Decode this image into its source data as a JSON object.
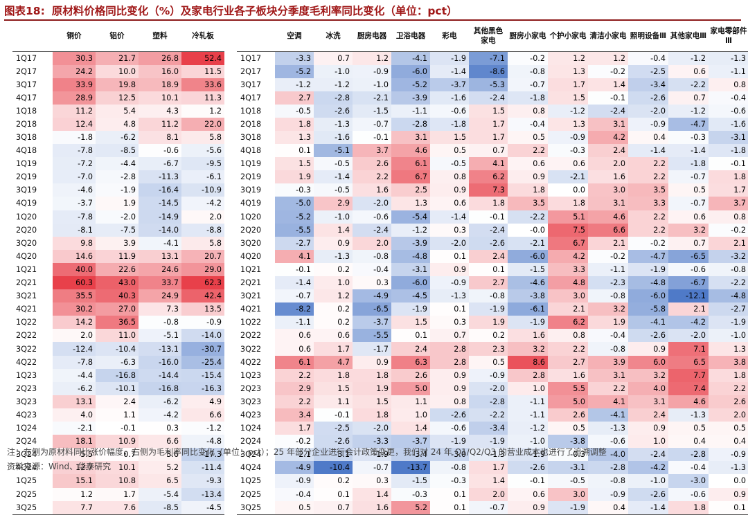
{
  "title": {
    "prefix": "图表18:",
    "text": "原材料价格同比变化（%）及家电行业各子板块分季度毛利率同比变化（单位：pct）"
  },
  "left_table": {
    "headers": [
      "",
      "铜价",
      "铝价",
      "塑料",
      "冷轧板"
    ],
    "rows": [
      {
        "q": "1Q17",
        "v": [
          30.3,
          21.7,
          26.8,
          52.4
        ]
      },
      {
        "q": "2Q17",
        "v": [
          24.2,
          10.0,
          16.0,
          11.5
        ]
      },
      {
        "q": "3Q17",
        "v": [
          33.9,
          19.8,
          18.9,
          33.6
        ]
      },
      {
        "q": "4Q17",
        "v": [
          28.9,
          12.5,
          10.1,
          11.3
        ]
      },
      {
        "q": "1Q18",
        "v": [
          11.2,
          5.4,
          4.3,
          1.2
        ]
      },
      {
        "q": "2Q18",
        "v": [
          12.4,
          4.8,
          11.2,
          22.0
        ]
      },
      {
        "q": "3Q18",
        "v": [
          -1.8,
          -6.2,
          8.1,
          5.8
        ]
      },
      {
        "q": "4Q18",
        "v": [
          -7.8,
          -8.5,
          -0.6,
          -5.6
        ]
      },
      {
        "q": "1Q19",
        "v": [
          -7.2,
          -4.4,
          -6.7,
          -9.5
        ]
      },
      {
        "q": "2Q19",
        "v": [
          -7.0,
          -2.8,
          -11.3,
          -6.1
        ]
      },
      {
        "q": "3Q19",
        "v": [
          -4.6,
          -1.9,
          -16.4,
          -10.9
        ]
      },
      {
        "q": "4Q19",
        "v": [
          -3.7,
          1.9,
          -14.5,
          -4.2
        ]
      },
      {
        "q": "1Q20",
        "v": [
          -7.8,
          -2.0,
          -14.9,
          2.0
        ]
      },
      {
        "q": "2Q20",
        "v": [
          -8.1,
          -7.5,
          -14.0,
          -8.8
        ]
      },
      {
        "q": "3Q20",
        "v": [
          9.8,
          3.9,
          -4.1,
          5.8
        ]
      },
      {
        "q": "4Q20",
        "v": [
          14.6,
          11.9,
          13.1,
          20.7
        ]
      },
      {
        "q": "1Q21",
        "v": [
          40.0,
          22.6,
          24.6,
          29.0
        ]
      },
      {
        "q": "2Q21",
        "v": [
          60.3,
          43.0,
          33.7,
          62.3
        ]
      },
      {
        "q": "3Q21",
        "v": [
          35.5,
          40.3,
          24.9,
          42.4
        ]
      },
      {
        "q": "4Q21",
        "v": [
          30.2,
          27.0,
          7.3,
          13.5
        ]
      },
      {
        "q": "1Q22",
        "v": [
          14.2,
          36.5,
          -0.8,
          -0.9
        ]
      },
      {
        "q": "2Q22",
        "v": [
          2.0,
          11.0,
          -5.1,
          -14.0
        ]
      },
      {
        "q": "3Q22",
        "v": [
          -12.4,
          -10.4,
          -13.1,
          -30.7
        ]
      },
      {
        "q": "4Q22",
        "v": [
          -7.8,
          -6.3,
          -16.0,
          -25.4
        ]
      },
      {
        "q": "1Q23",
        "v": [
          -4.4,
          -16.8,
          -14.4,
          -15.4
        ]
      },
      {
        "q": "2Q23",
        "v": [
          -6.2,
          -10.1,
          -16.8,
          -16.3
        ]
      },
      {
        "q": "3Q23",
        "v": [
          13.1,
          2.4,
          -6.2,
          4.9
        ]
      },
      {
        "q": "4Q23",
        "v": [
          4.0,
          1.1,
          -4.2,
          6.6
        ]
      },
      {
        "q": "1Q24",
        "v": [
          -2.1,
          -0.1,
          0.3,
          -1.2
        ]
      },
      {
        "q": "2Q24",
        "v": [
          18.1,
          10.9,
          6.6,
          -4.8
        ]
      },
      {
        "q": "3Q24",
        "v": [
          5.5,
          0.7,
          3.6,
          -17.3
        ]
      },
      {
        "q": "4Q24",
        "v": [
          12.7,
          10.1,
          5.2,
          -11.4
        ]
      },
      {
        "q": "1Q25",
        "v": [
          15.1,
          10.8,
          6.5,
          -9.3
        ]
      },
      {
        "q": "2Q25",
        "v": [
          1.2,
          1.7,
          -5.4,
          -13.4
        ]
      },
      {
        "q": "3Q25",
        "v": [
          7.7,
          7.6,
          -8.5,
          -4.5
        ]
      }
    ]
  },
  "right_table": {
    "headers": [
      "",
      "空调",
      "冰洗",
      "厨房电器",
      "卫浴电器",
      "彩电",
      "其他黑色家电",
      "厨房小家电",
      "个护小家电",
      "清洁小家电",
      "照明设备Ⅲ",
      "其他家电Ⅲ",
      "家电零部件Ⅲ"
    ],
    "rows": [
      {
        "q": "1Q17",
        "v": [
          -3.3,
          0.7,
          1.2,
          -4.1,
          -1.9,
          -7.1,
          -0.2,
          1.2,
          1.2,
          -0.4,
          -1.2,
          -1.3
        ]
      },
      {
        "q": "2Q17",
        "v": [
          -5.2,
          -1.0,
          -0.9,
          -6.0,
          -1.4,
          -8.6,
          -0.8,
          1.3,
          -0.2,
          -2.5,
          0.6,
          -1.1
        ]
      },
      {
        "q": "3Q17",
        "v": [
          -1.2,
          -1.2,
          -1.0,
          -5.2,
          -3.7,
          -5.3,
          -0.7,
          1.7,
          1.4,
          -3.4,
          -2.2,
          0.8
        ]
      },
      {
        "q": "4Q17",
        "v": [
          2.7,
          -2.8,
          -2.1,
          -3.9,
          -1.6,
          -2.4,
          -1.8,
          1.5,
          -0.1,
          -2.6,
          0.7,
          -0.4
        ]
      },
      {
        "q": "1Q18",
        "v": [
          -0.5,
          -2.6,
          -1.5,
          -1.1,
          -0.6,
          1.5,
          0.8,
          -1.2,
          -2.4,
          -2.0,
          -1.2,
          -0.6
        ]
      },
      {
        "q": "2Q18",
        "v": [
          1.8,
          -1.3,
          -0.7,
          -2.8,
          -1.8,
          1.7,
          -0.4,
          1.3,
          3.1,
          -0.9,
          -4.7,
          -1.6
        ]
      },
      {
        "q": "3Q18",
        "v": [
          1.3,
          -1.6,
          -0.1,
          3.1,
          1.5,
          1.7,
          0.5,
          -0.9,
          4.2,
          0.4,
          -0.3,
          -3.1
        ]
      },
      {
        "q": "4Q18",
        "v": [
          0.1,
          -5.1,
          3.7,
          4.6,
          0.5,
          0.7,
          2.2,
          -0.3,
          2.4,
          -1.4,
          -1.4,
          -1.8
        ]
      },
      {
        "q": "1Q19",
        "v": [
          1.5,
          -0.5,
          2.6,
          6.1,
          -0.5,
          4.1,
          0.6,
          0.6,
          2.0,
          2.2,
          -1.8,
          -0.1
        ]
      },
      {
        "q": "2Q19",
        "v": [
          1.9,
          -1.4,
          2.2,
          6.7,
          0.8,
          6.2,
          0.9,
          -2.1,
          1.6,
          2.2,
          -0.7,
          1.8
        ]
      },
      {
        "q": "3Q19",
        "v": [
          -0.3,
          -0.5,
          1.6,
          2.5,
          0.9,
          7.3,
          1.8,
          0.0,
          3.0,
          3.5,
          0.5,
          1.7
        ]
      },
      {
        "q": "4Q19",
        "v": [
          -5.0,
          2.9,
          -2.0,
          1.3,
          0.6,
          1.8,
          3.5,
          1.8,
          3.1,
          3.3,
          -0.7,
          3.7
        ]
      },
      {
        "q": "1Q20",
        "v": [
          -5.2,
          -1.0,
          -0.6,
          -5.4,
          -1.4,
          -0.1,
          -2.2,
          5.1,
          4.6,
          2.2,
          0.6,
          0.8
        ]
      },
      {
        "q": "2Q20",
        "v": [
          -5.5,
          1.4,
          -2.4,
          -1.2,
          0.3,
          -2.4,
          -0.0,
          7.5,
          6.6,
          2.2,
          3.2,
          -0.2
        ]
      },
      {
        "q": "3Q20",
        "v": [
          -2.7,
          0.9,
          2.0,
          -3.9,
          -2.0,
          -2.6,
          -2.1,
          6.7,
          2.1,
          -0.2,
          0.7,
          2.1
        ]
      },
      {
        "q": "4Q20",
        "v": [
          4.1,
          -1.3,
          -0.8,
          -4.8,
          0.1,
          2.4,
          -6.0,
          4.2,
          -0.2,
          -4.7,
          -6.5,
          -3.2
        ]
      },
      {
        "q": "1Q21",
        "v": [
          -0.1,
          0.2,
          -0.4,
          -3.1,
          0.9,
          0.1,
          -1.5,
          3.3,
          -1.1,
          -1.9,
          -0.6,
          -0.8
        ]
      },
      {
        "q": "2Q21",
        "v": [
          -1.4,
          1.0,
          0.3,
          -6.0,
          -0.9,
          2.7,
          -4.6,
          4.8,
          -2.3,
          -4.8,
          -6.7,
          -2.2
        ]
      },
      {
        "q": "3Q21",
        "v": [
          -0.7,
          1.2,
          -4.9,
          -4.5,
          -1.3,
          -0.8,
          -3.8,
          3.0,
          -0.8,
          -6.0,
          -12.1,
          -4.8
        ]
      },
      {
        "q": "4Q21",
        "v": [
          -8.2,
          0.2,
          -6.5,
          -1.9,
          0.1,
          -1.9,
          -6.1,
          2.1,
          3.2,
          -5.8,
          2.1,
          -2.7
        ]
      },
      {
        "q": "1Q22",
        "v": [
          -1.1,
          0.2,
          -3.7,
          1.5,
          0.3,
          1.9,
          -1.9,
          6.2,
          1.9,
          -4.1,
          -4.2,
          -1.9
        ]
      },
      {
        "q": "2Q22",
        "v": [
          0.6,
          0.6,
          -5.5,
          0.1,
          0.7,
          0.2,
          1.6,
          0.8,
          -0.4,
          -2.6,
          -2.0,
          -1.0
        ]
      },
      {
        "q": "3Q22",
        "v": [
          0.6,
          1.7,
          -1.7,
          2.4,
          2.8,
          2.3,
          3.2,
          2.2,
          -0.8,
          0.9,
          7.1,
          1.3
        ]
      },
      {
        "q": "4Q22",
        "v": [
          6.1,
          4.7,
          0.9,
          6.3,
          2.8,
          0.5,
          8.6,
          2.7,
          3.9,
          6.0,
          6.5,
          3.8
        ]
      },
      {
        "q": "1Q23",
        "v": [
          2.2,
          1.8,
          1.8,
          2.6,
          0.9,
          -0.9,
          2.8,
          1.6,
          3.1,
          3.2,
          7.7,
          1.8
        ]
      },
      {
        "q": "2Q23",
        "v": [
          2.9,
          1.5,
          1.9,
          5.0,
          0.9,
          -2.0,
          1.0,
          5.5,
          2.2,
          4.0,
          7.4,
          2.2
        ]
      },
      {
        "q": "3Q23",
        "v": [
          2.2,
          1.1,
          1.5,
          1.1,
          0.8,
          -2.8,
          -1.1,
          5.0,
          4.1,
          3.1,
          4.6,
          2.6
        ]
      },
      {
        "q": "4Q23",
        "v": [
          3.4,
          -0.1,
          1.8,
          1.0,
          -2.6,
          -2.2,
          -1.1,
          2.6,
          -4.1,
          2.4,
          -1.3,
          2.0
        ]
      },
      {
        "q": "1Q24",
        "v": [
          1.7,
          -2.5,
          -2.0,
          1.4,
          -0.6,
          -3.4,
          -1.2,
          0.5,
          -1.3,
          0.9,
          0.5,
          0.5
        ]
      },
      {
        "q": "2Q24",
        "v": [
          -0.2,
          -2.6,
          -3.3,
          -3.7,
          -1.9,
          -1.9,
          -1.0,
          -3.8,
          -0.6,
          1.0,
          0.4,
          0.4
        ]
      },
      {
        "q": "3Q24",
        "v": [
          -2.1,
          -3.1,
          -1.9,
          -3.4,
          -3.0,
          -1.3,
          -1.9,
          -0.3,
          -4.0,
          -2.4,
          -2.8,
          -0.9
        ]
      },
      {
        "q": "4Q24",
        "v": [
          -4.9,
          -10.4,
          -0.7,
          -13.7,
          -0.8,
          1.7,
          -2.6,
          -3.1,
          -2.8,
          -4.2,
          -0.4,
          -1.3
        ]
      },
      {
        "q": "1Q25",
        "v": [
          -0.9,
          0.2,
          0.3,
          -1.5,
          -0.3,
          1.4,
          -0.1,
          -0.5,
          -0.8,
          -1.0,
          -3.0,
          0.0
        ]
      },
      {
        "q": "2Q25",
        "v": [
          -0.4,
          0.1,
          1.4,
          -0.3,
          0.1,
          2.0,
          0.6,
          3.0,
          -0.9,
          -2.6,
          -0.6,
          0.9
        ]
      },
      {
        "q": "3Q25",
        "v": [
          0.5,
          0.7,
          1.6,
          5.2,
          0.1,
          -0.7,
          0.9,
          -1.9,
          0.4,
          -1.4,
          1.8,
          0.1
        ]
      }
    ]
  },
  "footnote": {
    "line1": "注：左侧为原材料同比涨价幅度，右侧为毛利率同比变化（单位：pct）；25 年部分企业进行会计政策变更，我们对 24 年 Q1/Q2/Q3 的营业成本也进行了追溯调整",
    "line2": "资料来源：Wind、华泰研究"
  },
  "colors": {
    "positive": "#e8404a",
    "negative": "#4f7ac8",
    "title": "#a01818",
    "rule": "#8c1a1a"
  }
}
